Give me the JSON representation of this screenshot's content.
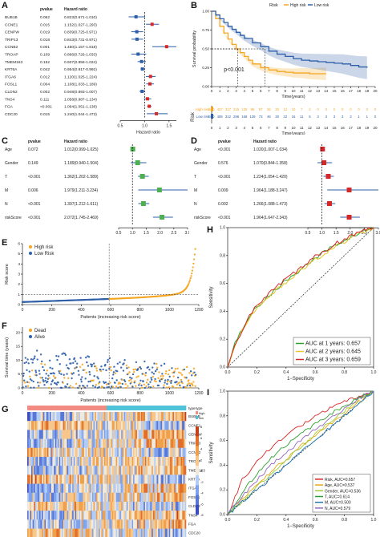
{
  "panels": {
    "A": "A",
    "B": "B",
    "C": "C",
    "D": "D",
    "E": "E",
    "F": "F",
    "G": "G",
    "H": "H",
    "I": "I"
  },
  "chart_data": [
    {
      "id": "A",
      "type": "forest",
      "col_headers": [
        "pvalue",
        "Hazard ratio"
      ],
      "xlabel": "Hazard ratio",
      "xticks": [
        "0.5",
        "1.0",
        "1.5"
      ],
      "xlim": [
        0.5,
        1.65
      ],
      "ref": 1.0,
      "rows": [
        {
          "gene": "BUB1B",
          "p": "0.062",
          "txt": "0.823(0.671-1.010)",
          "hr": 0.823,
          "lo": 0.671,
          "hi": 1.01
        },
        {
          "gene": "CCNE1",
          "p": "0.015",
          "txt": "1.152(1.027-1.293)",
          "hr": 1.152,
          "lo": 1.027,
          "hi": 1.293
        },
        {
          "gene": "CENPW",
          "p": "0.019",
          "txt": "0.839(0.725-0.971)",
          "hr": 0.839,
          "lo": 0.725,
          "hi": 0.971
        },
        {
          "gene": "TRIP13",
          "p": "0.018",
          "txt": "0.843(0.731-0.971)",
          "hr": 0.843,
          "lo": 0.731,
          "hi": 0.971
        },
        {
          "gene": "CCNB2",
          "p": "0.001",
          "txt": "1.450(1.157-1.818)",
          "hr": 1.45,
          "lo": 1.157,
          "hi": 1.818
        },
        {
          "gene": "TROAP",
          "p": "0.109",
          "txt": "0.866(0.726-1.033)",
          "hr": 0.866,
          "lo": 0.726,
          "hi": 1.033
        },
        {
          "gene": "TMEM163",
          "p": "0.152",
          "txt": "0.937(0.856-1.024)",
          "hr": 0.937,
          "lo": 0.856,
          "hi": 1.024
        },
        {
          "gene": "KRT6A",
          "p": "0.042",
          "txt": "0.954(0.917-0.992)",
          "hr": 0.954,
          "lo": 0.917,
          "hi": 0.992
        },
        {
          "gene": "ITGA6",
          "p": "0.012",
          "txt": "1.120(1.025-1.224)",
          "hr": 1.12,
          "lo": 1.025,
          "hi": 1.224
        },
        {
          "gene": "FOSL1",
          "p": "0.004",
          "txt": "1.108(1.033-1.189)",
          "hr": 1.108,
          "lo": 1.033,
          "hi": 1.189
        },
        {
          "gene": "CLDN2",
          "p": "0.002",
          "txt": "0.948(0.893-1.007)",
          "hr": 0.948,
          "lo": 0.893,
          "hi": 1.007
        },
        {
          "gene": "TNS4",
          "p": "0.111",
          "txt": "1.058(0.987-1.134)",
          "hr": 1.058,
          "lo": 0.987,
          "hi": 1.134
        },
        {
          "gene": "FGA",
          "p": "<0.001",
          "txt": "1.094(1.051-1.138)",
          "hr": 1.094,
          "lo": 1.051,
          "hi": 1.138
        },
        {
          "gene": "CDC20",
          "p": "0.015",
          "txt": "1.240(1.044-1.473)",
          "hr": 1.24,
          "lo": 1.044,
          "hi": 1.473
        }
      ]
    },
    {
      "id": "B",
      "type": "line",
      "legend_title": "Risk",
      "legend": [
        "High risk",
        "Low risk"
      ],
      "colors": [
        "#F5A623",
        "#2E5FA8"
      ],
      "xlabel": "Time(years)",
      "ylabel": "Survival probability",
      "xticks": [
        "0",
        "1",
        "2",
        "3",
        "4",
        "5",
        "6",
        "7",
        "8",
        "9",
        "10",
        "11",
        "12",
        "13",
        "14",
        "15",
        "16",
        "17",
        "18",
        "19",
        "20"
      ],
      "yticks": [
        "0.00",
        "0.25",
        "0.50",
        "0.75",
        "1.00"
      ],
      "xlim": [
        0,
        20
      ],
      "ylim": [
        0,
        1
      ],
      "pval": "p<0.001",
      "median_marks": [
        3.2,
        6.5
      ],
      "series": [
        {
          "name": "High risk",
          "x": [
            0,
            0.5,
            1,
            1.5,
            2,
            2.5,
            3,
            3.5,
            4,
            4.5,
            5,
            6,
            7,
            8,
            9,
            10,
            11,
            12,
            13,
            14
          ],
          "y": [
            1,
            0.9,
            0.8,
            0.71,
            0.63,
            0.56,
            0.5,
            0.45,
            0.4,
            0.35,
            0.3,
            0.25,
            0.22,
            0.2,
            0.19,
            0.18,
            0.18,
            0.17,
            0.17,
            0.17
          ]
        },
        {
          "name": "Low risk",
          "x": [
            0,
            0.5,
            1,
            1.5,
            2,
            2.5,
            3,
            3.5,
            4,
            5,
            6,
            7,
            8,
            9,
            10,
            11,
            12,
            13,
            14,
            15,
            16,
            17,
            18,
            19
          ],
          "y": [
            1,
            0.95,
            0.9,
            0.85,
            0.8,
            0.76,
            0.72,
            0.68,
            0.64,
            0.58,
            0.53,
            0.47,
            0.43,
            0.4,
            0.37,
            0.35,
            0.34,
            0.33,
            0.32,
            0.31,
            0.3,
            0.28,
            0.26,
            0.25
          ]
        }
      ],
      "risk_table": {
        "title": "Risk",
        "rows": [
          {
            "label": "High risk",
            "values": [
              590,
              427,
              317,
              215,
              125,
              86,
              57,
              36,
              20,
              12,
              10,
              7,
              2,
              0,
              0,
              0,
              0,
              0,
              0,
              0,
              0
            ]
          },
          {
            "label": "Low risk",
            "values": [
              590,
              485,
              312,
              296,
              168,
              128,
              73,
              46,
              30,
              22,
              16,
              11,
              5,
              3,
              3,
              3,
              3,
              3,
              1,
              1,
              0
            ]
          }
        ]
      }
    },
    {
      "id": "C",
      "type": "forest",
      "col_headers": [
        "pvalue",
        "Hazard ratio"
      ],
      "xlabel": "Hazard ratio",
      "xticks": [
        "0.5",
        "1.0",
        "1.5",
        "2.0",
        "2.5",
        "3.0"
      ],
      "xlim": [
        0.5,
        3.0
      ],
      "ref": 1.0,
      "rows": [
        {
          "gene": "Age",
          "p": "0.072",
          "txt": "1.012(0.999-1.025)",
          "hr": 1.012,
          "lo": 0.999,
          "hi": 1.025
        },
        {
          "gene": "Gender",
          "p": "0.149",
          "txt": "1.189(0.940-1.504)",
          "hr": 1.189,
          "lo": 0.94,
          "hi": 1.504
        },
        {
          "gene": "T",
          "p": "<0.001",
          "txt": "1.362(1.202-1.589)",
          "hr": 1.362,
          "lo": 1.202,
          "hi": 1.589
        },
        {
          "gene": "M",
          "p": "0.006",
          "txt": "1.979(1.211-3.234)",
          "hr": 1.979,
          "lo": 1.211,
          "hi": 3.234
        },
        {
          "gene": "N",
          "p": "<0.001",
          "txt": "1.397(1.212-1.611)",
          "hr": 1.397,
          "lo": 1.212,
          "hi": 1.611
        },
        {
          "gene": "riskScore",
          "p": "<0.001",
          "txt": "2.072(1.745-2.469)",
          "hr": 2.072,
          "lo": 1.745,
          "hi": 2.469
        }
      ]
    },
    {
      "id": "D",
      "type": "forest",
      "col_headers": [
        "pvalue",
        "Hazard ratio"
      ],
      "xlabel": "Hazard ratio",
      "xticks": [
        "0.5",
        "1.0",
        "1.5",
        "2.0",
        "2.5",
        "3.0"
      ],
      "xlim": [
        0.5,
        3.0
      ],
      "ref": 1.0,
      "rows": [
        {
          "gene": "Age",
          "p": "<0.001",
          "txt": "1.020(1.007-1.034)",
          "hr": 1.02,
          "lo": 1.007,
          "hi": 1.034
        },
        {
          "gene": "Gender",
          "p": "0.576",
          "txt": "1.070(0.844-1.358)",
          "hr": 1.07,
          "lo": 0.844,
          "hi": 1.358
        },
        {
          "gene": "T",
          "p": "<0.001",
          "txt": "1.224(1.054-1.420)",
          "hr": 1.224,
          "lo": 1.054,
          "hi": 1.42
        },
        {
          "gene": "M",
          "p": "0.009",
          "txt": "1.964(1.188-3.247)",
          "hr": 1.964,
          "lo": 1.188,
          "hi": 3.247
        },
        {
          "gene": "N",
          "p": "0.002",
          "txt": "1.266(1.088-1.473)",
          "hr": 1.266,
          "lo": 1.088,
          "hi": 1.473
        },
        {
          "gene": "riskScore",
          "p": "<0.001",
          "txt": "1.964(1.647-2.343)",
          "hr": 1.964,
          "lo": 1.647,
          "hi": 2.343
        }
      ]
    },
    {
      "id": "E",
      "type": "scatter",
      "legend": [
        "High risk",
        "Low Risk"
      ],
      "colors": [
        "#F5A623",
        "#2E5FA8"
      ],
      "xlabel": "Patients (increasing risk score)",
      "ylabel": "Risk score",
      "xticks": [
        "0",
        "200",
        "400",
        "600",
        "800",
        "1000",
        "1200"
      ],
      "yticks": [
        "0",
        "1",
        "2",
        "3",
        "4",
        "5",
        "6"
      ],
      "xlim": [
        0,
        1200
      ],
      "ylim": [
        0,
        6
      ],
      "cutoff_x": 590,
      "cutoff_y": 1.0
    },
    {
      "id": "F",
      "type": "scatter",
      "legend": [
        "Dead",
        "Alive"
      ],
      "colors": [
        "#F5A623",
        "#2E5FA8"
      ],
      "xlabel": "Patients (increasing risk score)",
      "ylabel": "Survival time (years)",
      "xticks": [
        "0",
        "200",
        "400",
        "600",
        "800",
        "1000",
        "1200"
      ],
      "yticks": [
        "0",
        "5",
        "10",
        "15",
        "20"
      ],
      "xlim": [
        0,
        1200
      ],
      "ylim": [
        0,
        22
      ],
      "cutoff_x": 590
    },
    {
      "id": "G",
      "type": "heatmap",
      "rows": [
        "BUB1B",
        "CCNE1",
        "CENPW",
        "TRIP13",
        "CCNB2",
        "TROAP",
        "TMEM163",
        "KRT6A",
        "ITGA6",
        "FOSL1",
        "CLDN2",
        "TNS4",
        "FGA",
        "CDC20"
      ],
      "annotation_label": "type",
      "legend_title": "type",
      "legend": [
        "high",
        "low"
      ],
      "scale_ticks": [
        "8",
        "6",
        "4",
        "2",
        "0",
        "-2",
        "-4",
        "-6",
        "-8"
      ]
    },
    {
      "id": "H",
      "type": "line",
      "xlabel": "1−Specificity",
      "ylabel": "Sensitivity",
      "xticks": [
        "0.0",
        "0.2",
        "0.4",
        "0.6",
        "0.8",
        "1.0"
      ],
      "yticks": [
        "0.0",
        "0.2",
        "0.4",
        "0.6",
        "0.8",
        "1.0"
      ],
      "xlim": [
        0,
        1
      ],
      "ylim": [
        0,
        1
      ],
      "series": [
        {
          "name": "AUC at 1 years: 0.657",
          "color": "#2CA02C",
          "x": [
            0,
            0.05,
            0.1,
            0.15,
            0.2,
            0.3,
            0.4,
            0.5,
            0.6,
            0.7,
            0.8,
            0.9,
            1
          ],
          "y": [
            0,
            0.17,
            0.28,
            0.36,
            0.43,
            0.53,
            0.62,
            0.7,
            0.78,
            0.85,
            0.91,
            0.96,
            1
          ]
        },
        {
          "name": "AUC at 2 years: 0.645",
          "color": "#E8C72A",
          "x": [
            0,
            0.05,
            0.1,
            0.15,
            0.2,
            0.3,
            0.4,
            0.5,
            0.6,
            0.7,
            0.8,
            0.9,
            1
          ],
          "y": [
            0,
            0.15,
            0.26,
            0.35,
            0.42,
            0.52,
            0.61,
            0.69,
            0.77,
            0.84,
            0.9,
            0.96,
            1
          ]
        },
        {
          "name": "AUC at 3 years: 0.659",
          "color": "#D62728",
          "x": [
            0,
            0.05,
            0.1,
            0.15,
            0.2,
            0.3,
            0.4,
            0.5,
            0.6,
            0.7,
            0.8,
            0.9,
            1
          ],
          "y": [
            0,
            0.16,
            0.27,
            0.37,
            0.44,
            0.54,
            0.63,
            0.71,
            0.79,
            0.86,
            0.92,
            0.97,
            1
          ]
        }
      ]
    },
    {
      "id": "I",
      "type": "line",
      "xlabel": "1−Specificity",
      "ylabel": "Sensitivity",
      "xticks": [
        "0.0",
        "0.2",
        "0.4",
        "0.6",
        "0.8",
        "1.0"
      ],
      "yticks": [
        "0.0",
        "0.2",
        "0.4",
        "0.6",
        "0.8",
        "1.0"
      ],
      "xlim": [
        0,
        1
      ],
      "ylim": [
        0,
        1
      ],
      "series": [
        {
          "name": "Risk, AUC=0.657",
          "color": "#D62728",
          "x": [
            0,
            0.1,
            0.2,
            0.3,
            0.4,
            0.5,
            0.6,
            0.7,
            0.8,
            0.9,
            1
          ],
          "y": [
            0,
            0.28,
            0.43,
            0.55,
            0.64,
            0.72,
            0.79,
            0.86,
            0.91,
            0.96,
            1
          ]
        },
        {
          "name": "Age, AUC=0.537",
          "color": "#E6A817",
          "x": [
            0,
            0.1,
            0.2,
            0.3,
            0.4,
            0.5,
            0.6,
            0.7,
            0.8,
            0.9,
            1
          ],
          "y": [
            0,
            0.12,
            0.24,
            0.35,
            0.45,
            0.55,
            0.64,
            0.73,
            0.82,
            0.91,
            1
          ]
        },
        {
          "name": "Gender, AUC=0.536",
          "color": "#9ACD32",
          "x": [
            0,
            0.1,
            0.2,
            0.3,
            0.4,
            0.5,
            0.6,
            0.7,
            0.8,
            0.9,
            1
          ],
          "y": [
            0,
            0.11,
            0.22,
            0.33,
            0.44,
            0.55,
            0.65,
            0.75,
            0.84,
            0.93,
            1
          ]
        },
        {
          "name": "T, AUC=0.614",
          "color": "#2CA02C",
          "x": [
            0,
            0.1,
            0.2,
            0.3,
            0.4,
            0.5,
            0.6,
            0.7,
            0.8,
            0.9,
            1
          ],
          "y": [
            0,
            0.18,
            0.33,
            0.46,
            0.56,
            0.65,
            0.73,
            0.81,
            0.88,
            0.95,
            1
          ]
        },
        {
          "name": "M, AUC=0.500",
          "color": "#1F77B4",
          "x": [
            0,
            0.1,
            0.2,
            0.3,
            0.4,
            0.5,
            0.6,
            0.7,
            0.8,
            0.9,
            1
          ],
          "y": [
            0,
            0.1,
            0.2,
            0.3,
            0.4,
            0.5,
            0.6,
            0.7,
            0.8,
            0.9,
            1
          ]
        },
        {
          "name": "N, AUC=0.579",
          "color": "#9467BD",
          "x": [
            0,
            0.1,
            0.2,
            0.3,
            0.4,
            0.5,
            0.6,
            0.7,
            0.8,
            0.9,
            1
          ],
          "y": [
            0,
            0.15,
            0.28,
            0.4,
            0.5,
            0.6,
            0.69,
            0.78,
            0.86,
            0.94,
            1
          ]
        }
      ]
    }
  ]
}
